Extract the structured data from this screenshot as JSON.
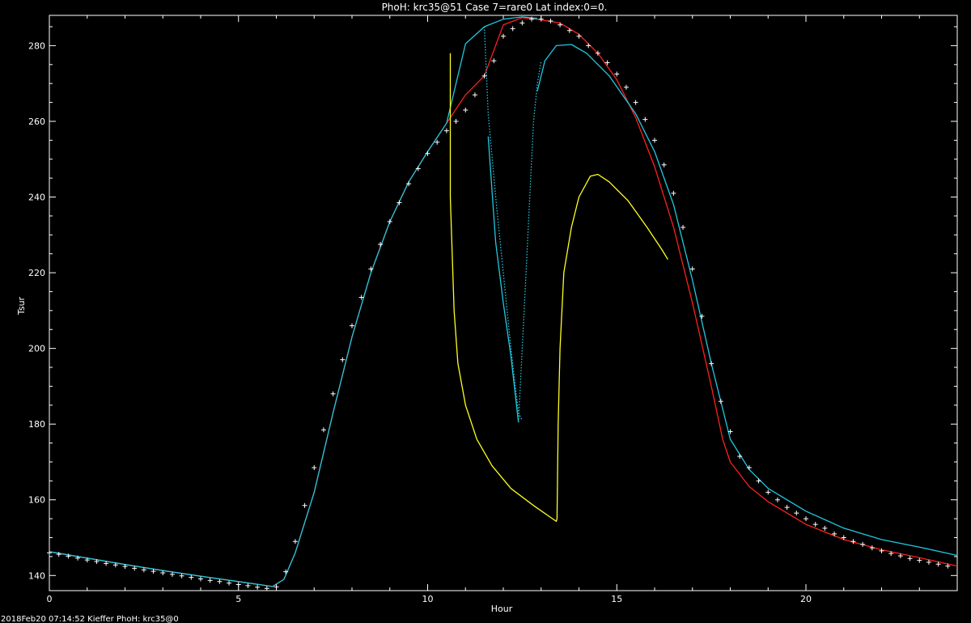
{
  "chart_data": {
    "type": "line",
    "title": "PhoH: krc35@51  Case 7=rare0  Lat index:0=0.",
    "xlabel": "Hour",
    "ylabel": "Tsur",
    "xlim": [
      0,
      24
    ],
    "ylim": [
      136,
      288
    ],
    "x_ticks": [
      0,
      5,
      10,
      15,
      20
    ],
    "y_ticks": [
      140,
      160,
      180,
      200,
      220,
      240,
      260,
      280
    ],
    "grid": false,
    "footer": "2018Feb20 07:14:52 Kieffer PhoH: krc35@0",
    "colors": {
      "background": "#000000",
      "axes": "#ffffff",
      "red": "#ff2020",
      "cyan": "#20c8e0",
      "yellow": "#ffff20",
      "markers": "#ffffff"
    },
    "series": [
      {
        "color": "red",
        "style": "solid",
        "points": [
          [
            0,
            146.3
          ],
          [
            1,
            144.6
          ],
          [
            2,
            142.9
          ],
          [
            3,
            141.3
          ],
          [
            4,
            139.8
          ],
          [
            5,
            138.4
          ],
          [
            5.9,
            137.1
          ],
          [
            6.2,
            139
          ],
          [
            6.5,
            146
          ],
          [
            7,
            162
          ],
          [
            7.5,
            183
          ],
          [
            8,
            203
          ],
          [
            8.5,
            220
          ],
          [
            9,
            233.5
          ],
          [
            9.5,
            244
          ],
          [
            10,
            252
          ],
          [
            10.5,
            259.5
          ],
          [
            11,
            267
          ],
          [
            11.5,
            272
          ],
          [
            12,
            285.5
          ],
          [
            12.5,
            287.4
          ],
          [
            13,
            286.8
          ],
          [
            13.5,
            286
          ],
          [
            14,
            283
          ],
          [
            14.5,
            278
          ],
          [
            15,
            271
          ],
          [
            15.5,
            261
          ],
          [
            16,
            248
          ],
          [
            16.5,
            232
          ],
          [
            17,
            212
          ],
          [
            17.5,
            190
          ],
          [
            17.8,
            176
          ],
          [
            18,
            170
          ],
          [
            18.5,
            163.5
          ],
          [
            19,
            159.5
          ],
          [
            20,
            153.5
          ],
          [
            21,
            149.5
          ],
          [
            22,
            146.8
          ],
          [
            23,
            144.7
          ],
          [
            24,
            142.5
          ]
        ]
      },
      {
        "color": "cyan",
        "style": "solid",
        "points": [
          [
            0,
            146.3
          ],
          [
            1,
            144.6
          ],
          [
            2,
            142.9
          ],
          [
            3,
            141.3
          ],
          [
            4,
            139.8
          ],
          [
            5,
            138.4
          ],
          [
            5.9,
            137.1
          ],
          [
            6.2,
            139
          ],
          [
            6.5,
            146
          ],
          [
            7,
            162
          ],
          [
            7.5,
            183
          ],
          [
            8,
            203
          ],
          [
            8.5,
            220
          ],
          [
            9,
            233.5
          ],
          [
            9.5,
            244
          ],
          [
            10,
            252
          ],
          [
            10.5,
            259.5
          ],
          [
            11,
            280.5
          ],
          [
            11.5,
            285
          ],
          [
            12,
            287
          ],
          [
            12.5,
            287.6
          ],
          [
            12.9,
            287.2
          ]
        ]
      },
      {
        "color": "cyan",
        "style": "dotted",
        "points": [
          [
            11.5,
            285
          ],
          [
            11.6,
            262
          ],
          [
            11.8,
            240
          ],
          [
            12,
            220
          ],
          [
            12.2,
            200
          ],
          [
            12.4,
            183
          ],
          [
            12.5,
            181
          ]
        ]
      },
      {
        "color": "cyan",
        "style": "solid",
        "points": [
          [
            11.6,
            256
          ],
          [
            11.8,
            228
          ],
          [
            12,
            212
          ],
          [
            12.2,
            198
          ],
          [
            12.4,
            180.5
          ]
        ]
      },
      {
        "color": "cyan",
        "style": "dotted",
        "points": [
          [
            12.4,
            180.5
          ],
          [
            12.5,
            200
          ],
          [
            12.6,
            220
          ],
          [
            12.7,
            240
          ],
          [
            12.8,
            260
          ],
          [
            12.9,
            270
          ],
          [
            13,
            276
          ]
        ]
      },
      {
        "color": "cyan",
        "style": "solid",
        "points": [
          [
            12.9,
            268
          ],
          [
            13.1,
            276
          ],
          [
            13.4,
            280
          ],
          [
            13.8,
            280.3
          ],
          [
            14.2,
            278
          ],
          [
            14.8,
            272
          ],
          [
            15.5,
            262
          ],
          [
            16,
            252
          ],
          [
            16.5,
            238
          ],
          [
            17,
            218
          ],
          [
            17.5,
            196
          ],
          [
            18,
            176
          ],
          [
            18.5,
            168
          ],
          [
            19,
            163
          ],
          [
            20,
            157
          ],
          [
            21,
            152.5
          ],
          [
            22,
            149.5
          ],
          [
            23,
            147.5
          ],
          [
            24,
            145.3
          ]
        ]
      },
      {
        "color": "yellow",
        "style": "solid",
        "points": [
          [
            10.6,
            278
          ],
          [
            10.6,
            240
          ],
          [
            10.7,
            210
          ],
          [
            10.8,
            196
          ],
          [
            11,
            185
          ],
          [
            11.3,
            176
          ],
          [
            11.7,
            169
          ],
          [
            12.2,
            163
          ],
          [
            12.8,
            158.5
          ],
          [
            13.4,
            154.3
          ],
          [
            13.42,
            155
          ],
          [
            13.45,
            180
          ],
          [
            13.5,
            200
          ],
          [
            13.6,
            220
          ],
          [
            13.8,
            232
          ],
          [
            14,
            240
          ],
          [
            14.3,
            245.5
          ],
          [
            14.5,
            246
          ],
          [
            14.8,
            244
          ],
          [
            15.3,
            239
          ],
          [
            15.8,
            232
          ],
          [
            16.2,
            226
          ],
          [
            16.35,
            223.5
          ]
        ]
      }
    ],
    "markers": {
      "color": "markers",
      "points": [
        [
          0,
          146
        ],
        [
          0.25,
          145.6
        ],
        [
          0.5,
          145.1
        ],
        [
          0.75,
          144.6
        ],
        [
          1,
          144.1
        ],
        [
          1.25,
          143.7
        ],
        [
          1.5,
          143.2
        ],
        [
          1.75,
          142.8
        ],
        [
          2,
          142.4
        ],
        [
          2.25,
          141.9
        ],
        [
          2.5,
          141.5
        ],
        [
          2.75,
          141.1
        ],
        [
          3,
          140.7
        ],
        [
          3.25,
          140.3
        ],
        [
          3.5,
          139.9
        ],
        [
          3.75,
          139.5
        ],
        [
          4,
          139.1
        ],
        [
          4.25,
          138.7
        ],
        [
          4.5,
          138.4
        ],
        [
          4.75,
          138
        ],
        [
          5,
          137.6
        ],
        [
          5.25,
          137.3
        ],
        [
          5.5,
          136.9
        ],
        [
          5.75,
          136.6
        ],
        [
          6,
          137
        ],
        [
          6.25,
          141
        ],
        [
          6.5,
          149
        ],
        [
          6.75,
          158.5
        ],
        [
          7,
          168.5
        ],
        [
          7.25,
          178.5
        ],
        [
          7.5,
          188
        ],
        [
          7.75,
          197
        ],
        [
          8,
          206
        ],
        [
          8.25,
          213.5
        ],
        [
          8.5,
          221
        ],
        [
          8.75,
          227.5
        ],
        [
          9,
          233.5
        ],
        [
          9.25,
          238.5
        ],
        [
          9.5,
          243.5
        ],
        [
          9.75,
          247.5
        ],
        [
          10,
          251.5
        ],
        [
          10.25,
          254.5
        ],
        [
          10.5,
          257.5
        ],
        [
          10.75,
          260
        ],
        [
          11,
          263
        ],
        [
          11.25,
          267
        ],
        [
          11.5,
          272
        ],
        [
          11.75,
          276
        ],
        [
          12,
          282.5
        ],
        [
          12.25,
          284.5
        ],
        [
          12.5,
          286
        ],
        [
          12.75,
          287
        ],
        [
          13,
          287
        ],
        [
          13.25,
          286.5
        ],
        [
          13.5,
          285.5
        ],
        [
          13.75,
          284
        ],
        [
          14,
          282.5
        ],
        [
          14.25,
          280
        ],
        [
          14.5,
          278
        ],
        [
          14.75,
          275.5
        ],
        [
          15,
          272.5
        ],
        [
          15.25,
          269
        ],
        [
          15.5,
          265
        ],
        [
          15.75,
          260.5
        ],
        [
          16,
          255
        ],
        [
          16.25,
          248.5
        ],
        [
          16.5,
          241
        ],
        [
          16.75,
          232
        ],
        [
          17,
          221
        ],
        [
          17.25,
          208.5
        ],
        [
          17.5,
          196
        ],
        [
          17.75,
          186
        ],
        [
          18,
          178
        ],
        [
          18.25,
          171.5
        ],
        [
          18.5,
          168.5
        ],
        [
          18.75,
          165
        ],
        [
          19,
          162
        ],
        [
          19.25,
          160
        ],
        [
          19.5,
          158
        ],
        [
          19.75,
          156.5
        ],
        [
          20,
          155
        ],
        [
          20.25,
          153.5
        ],
        [
          20.5,
          152.5
        ],
        [
          20.75,
          151
        ],
        [
          21,
          150
        ],
        [
          21.25,
          149
        ],
        [
          21.5,
          148.2
        ],
        [
          21.75,
          147.3
        ],
        [
          22,
          146.5
        ],
        [
          22.25,
          145.8
        ],
        [
          22.5,
          145.2
        ],
        [
          22.75,
          144.5
        ],
        [
          23,
          144
        ],
        [
          23.25,
          143.5
        ],
        [
          23.5,
          143
        ],
        [
          23.75,
          142.5
        ]
      ]
    }
  }
}
